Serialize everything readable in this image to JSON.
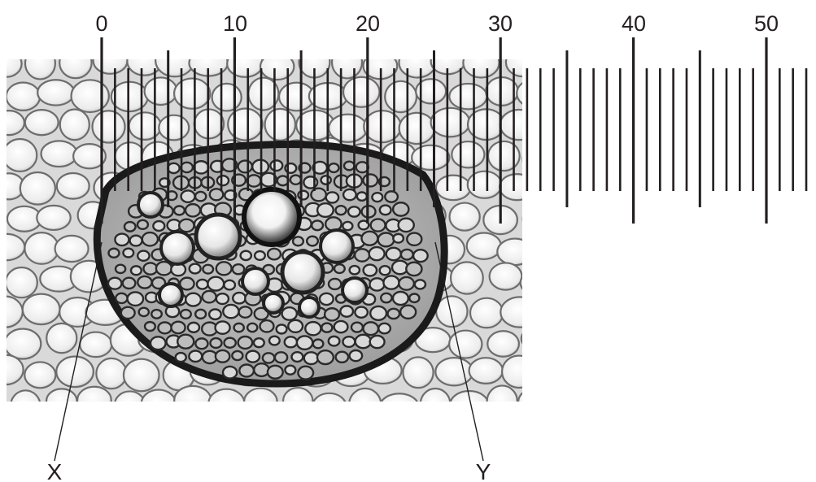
{
  "scale": {
    "major_labels": [
      "0",
      "10",
      "20",
      "30",
      "40",
      "50"
    ],
    "division_min": 0,
    "division_max": 53,
    "major_every": 10,
    "mid_every": 5
  },
  "labels": {
    "x": "X",
    "y": "Y"
  },
  "colors": {
    "ink": "#231f20",
    "cell_wall": "#3a3a3a",
    "cell_fill": "#f4f4f4",
    "background": "#ffffff"
  }
}
